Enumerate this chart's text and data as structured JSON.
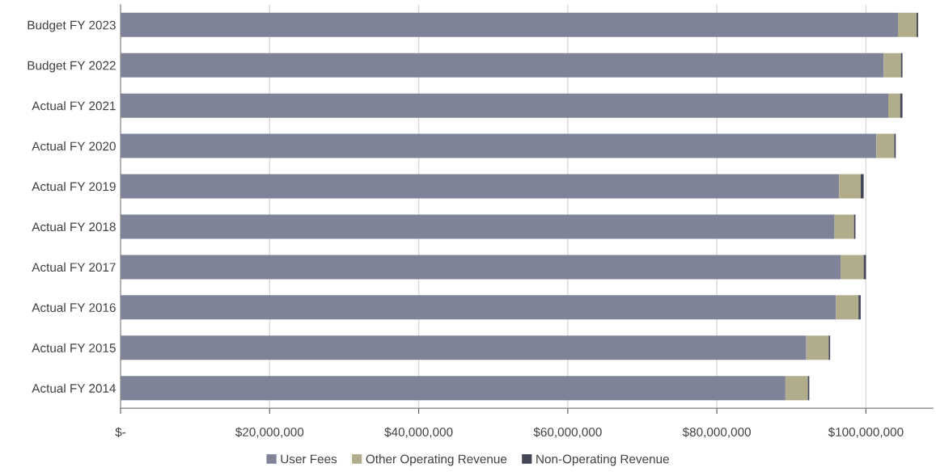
{
  "chart_data": {
    "type": "bar",
    "orientation": "horizontal",
    "stacked": true,
    "categories": [
      "Budget FY 2023",
      "Budget FY 2022",
      "Actual FY 2021",
      "Actual FY 2020",
      "Actual FY 2019",
      "Actual FY 2018",
      "Actual FY 2017",
      "Actual FY 2016",
      "Actual FY 2015",
      "Actual FY 2014"
    ],
    "series": [
      {
        "name": "User Fees",
        "color": "#7f8397",
        "values": [
          104300000,
          102400000,
          103000000,
          101400000,
          96400000,
          95800000,
          96600000,
          96000000,
          92000000,
          89200000
        ]
      },
      {
        "name": "Other Operating Revenue",
        "color": "#b1ad8c",
        "values": [
          2500000,
          2300000,
          1600000,
          2400000,
          2900000,
          2600000,
          3100000,
          3000000,
          3000000,
          3000000
        ]
      },
      {
        "name": "Non-Operating Revenue",
        "color": "#434756",
        "values": [
          200000,
          200000,
          300000,
          200000,
          400000,
          200000,
          300000,
          300000,
          200000,
          200000
        ]
      }
    ],
    "xlim": [
      0,
      109000000
    ],
    "xticks": [
      {
        "value": 0,
        "label": "$-"
      },
      {
        "value": 20000000,
        "label": "$20,000,000"
      },
      {
        "value": 40000000,
        "label": "$40,000,000"
      },
      {
        "value": 60000000,
        "label": "$60,000,000"
      },
      {
        "value": 80000000,
        "label": "$80,000,000"
      },
      {
        "value": 100000000,
        "label": "$100,000,000"
      }
    ],
    "grid": "x",
    "legend": "bottom"
  }
}
